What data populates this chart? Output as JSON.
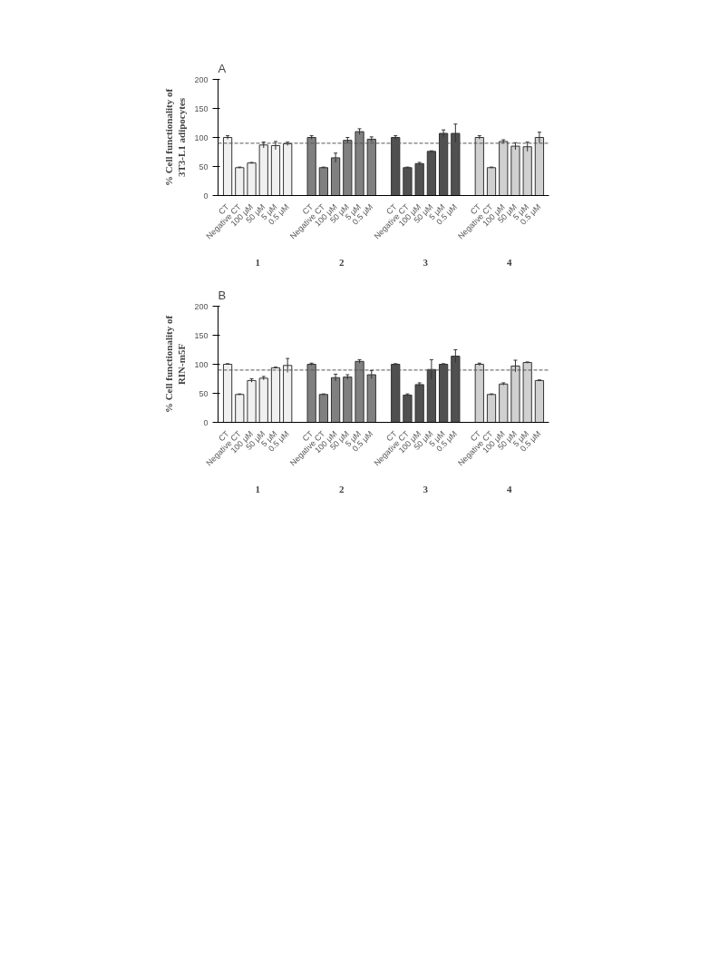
{
  "chart_data": [
    {
      "type": "bar",
      "title": "A",
      "ylabel": "% Cell functionality of\n3T3-L1 adipocytes",
      "categories": [
        "CT",
        "Negative CT",
        "100 μM",
        "50 μM",
        "5 μM",
        "0.5 μM",
        null,
        "CT",
        "Negative CT",
        "100 μM",
        "50 μM",
        "5 μM",
        "0.5 μM",
        null,
        "CT",
        "Negative CT",
        "100 μM",
        "50 μM",
        "5 μM",
        "0.5 μM",
        null,
        "CT",
        "Negative CT",
        "100 μM",
        "50 μM",
        "5 μM",
        "0.5 μM"
      ],
      "values": [
        100,
        48,
        56,
        87,
        86,
        89,
        null,
        100,
        48,
        65,
        95,
        110,
        97,
        null,
        100,
        48,
        55,
        76,
        107,
        107,
        null,
        100,
        48,
        93,
        85,
        84,
        100
      ],
      "errors": [
        3,
        1,
        1,
        5,
        7,
        3,
        null,
        3,
        1,
        8,
        5,
        5,
        4,
        null,
        3,
        1,
        2,
        1,
        6,
        16,
        null,
        3,
        1,
        3,
        6,
        8,
        9
      ],
      "colors": [
        "#f0f0f0",
        "#f0f0f0",
        "#f0f0f0",
        "#f0f0f0",
        "#f0f0f0",
        "#f0f0f0",
        "#ffffff",
        "#808080",
        "#808080",
        "#808080",
        "#808080",
        "#808080",
        "#808080",
        "#ffffff",
        "#505050",
        "#505050",
        "#505050",
        "#505050",
        "#505050",
        "#505050",
        "#ffffff",
        "#d0d0d0",
        "#d0d0d0",
        "#d0d0d0",
        "#d0d0d0",
        "#d0d0d0",
        "#d0d0d0"
      ],
      "ylim": [
        0,
        200
      ],
      "yticks": [
        0,
        50,
        100,
        150,
        200
      ],
      "grid": false,
      "ref_lines": [
        {
          "axis": "y",
          "value": 90,
          "line_style": "dashed",
          "color": "#555555"
        }
      ],
      "annotations": [
        "1",
        "2",
        "3",
        "4"
      ]
    },
    {
      "type": "bar",
      "title": "B",
      "ylabel": "% Cell functionality of\nRIN-m5F",
      "categories": [
        "CT",
        "Negative CT",
        "100 μM",
        "50 μM",
        "5 μM",
        "0.5 μM",
        null,
        "CT",
        "Negative CT",
        "100 μM",
        "50 μM",
        "5 μM",
        "0.5 μM",
        null,
        "CT",
        "Negative CT",
        "100 μM",
        "50 μM",
        "5 μM",
        "0.5 μM",
        null,
        "CT",
        "Negative CT",
        "100 μM",
        "50 μM",
        "5 μM",
        "0.5 μM"
      ],
      "values": [
        100,
        48,
        72,
        76,
        94,
        98,
        null,
        100,
        48,
        77,
        78,
        105,
        82,
        null,
        100,
        47,
        65,
        91,
        100,
        114,
        null,
        100,
        48,
        66,
        97,
        103,
        72
      ],
      "errors": [
        1,
        1,
        3,
        3,
        1,
        12,
        null,
        2,
        1,
        6,
        4,
        3,
        7,
        null,
        1,
        2,
        3,
        17,
        1,
        11,
        null,
        2,
        1,
        2,
        10,
        1,
        1
      ],
      "colors": [
        "#f0f0f0",
        "#f0f0f0",
        "#f0f0f0",
        "#f0f0f0",
        "#f0f0f0",
        "#f0f0f0",
        "#ffffff",
        "#808080",
        "#808080",
        "#808080",
        "#808080",
        "#808080",
        "#808080",
        "#ffffff",
        "#505050",
        "#505050",
        "#505050",
        "#505050",
        "#505050",
        "#505050",
        "#ffffff",
        "#d0d0d0",
        "#d0d0d0",
        "#d0d0d0",
        "#d0d0d0",
        "#d0d0d0",
        "#d0d0d0"
      ],
      "ylim": [
        0,
        200
      ],
      "yticks": [
        0,
        50,
        100,
        150,
        200
      ],
      "grid": false,
      "ref_lines": [
        {
          "axis": "y",
          "value": 90,
          "line_style": "dashed",
          "color": "#555555"
        }
      ],
      "annotations": [
        "1",
        "2",
        "3",
        "4"
      ]
    }
  ]
}
